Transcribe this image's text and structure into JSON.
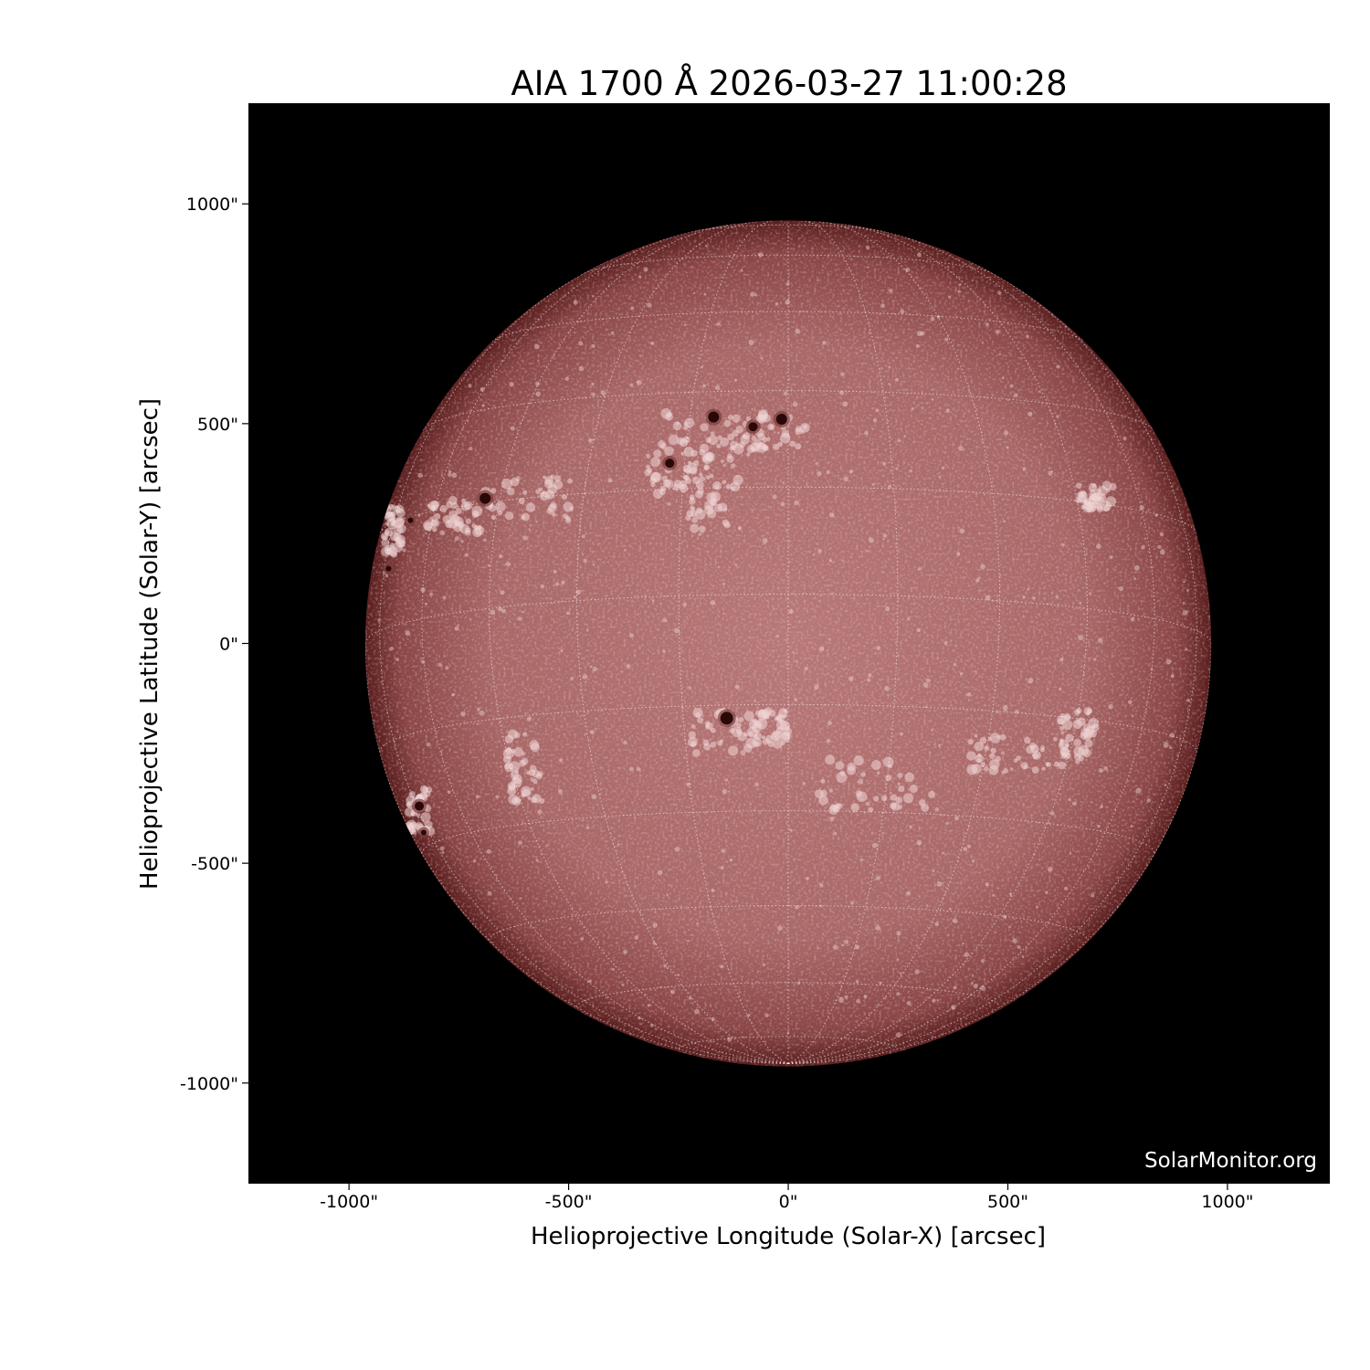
{
  "chart_data": {
    "type": "heatmap",
    "title": "AIA 1700 Å 2026-03-27 11:00:28",
    "xlabel": "Helioprojective Longitude (Solar-X) [arcsec]",
    "ylabel": "Helioprojective Latitude (Solar-Y) [arcsec]",
    "xlim": [
      -1229,
      1233
    ],
    "ylim": [
      -1229,
      1229
    ],
    "x_ticks": [
      -1000,
      -500,
      0,
      500,
      1000
    ],
    "y_ticks": [
      1000,
      500,
      0,
      -500,
      -1000
    ],
    "x_tick_labels": [
      "-1000\"",
      "-500\"",
      "0\"",
      "500\"",
      "1000\""
    ],
    "y_tick_labels": [
      "1000\"",
      "500\"",
      "0\"",
      "-500\"",
      "-1000\""
    ],
    "solar_radius_arcsec": 963,
    "grid": "heliographic, 15° spacing, dotted white",
    "colormap": "sdoaia1700",
    "background": "#000000",
    "colors": {
      "disk_center": "#b87878",
      "disk_limb": "#5a1e1e",
      "plage": "#f0d6d6",
      "sunspot": "#2a0808"
    }
  },
  "watermark": "SolarMonitor.org"
}
